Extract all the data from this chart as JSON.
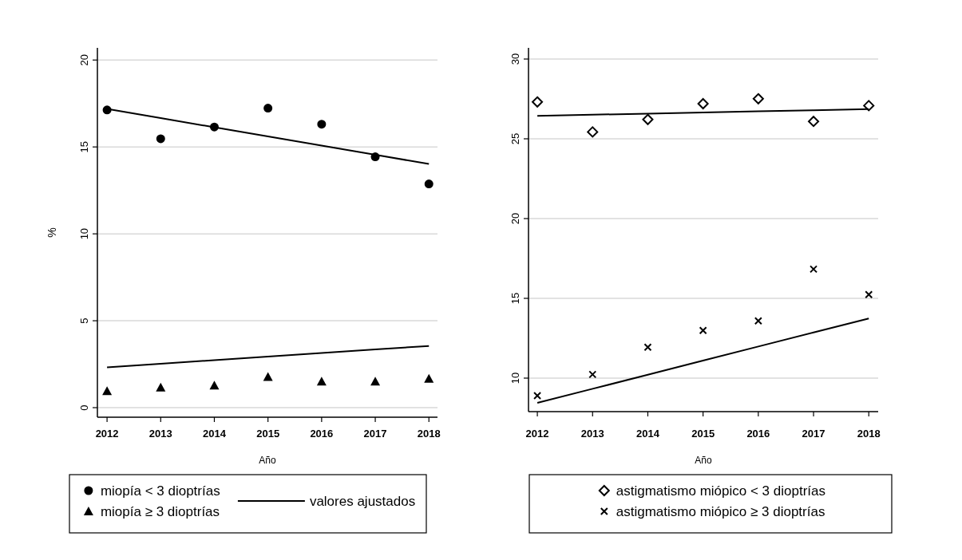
{
  "chart_data": [
    {
      "type": "scatter",
      "xlabel": "Año",
      "ylabel": "%",
      "x": [
        2012,
        2013,
        2014,
        2015,
        2016,
        2017,
        2018
      ],
      "xlim": [
        2011.82,
        2018.16
      ],
      "ylim": [
        -0.55,
        20.7
      ],
      "xticks": [
        2012,
        2013,
        2014,
        2015,
        2016,
        2017,
        2018
      ],
      "yticks": [
        0,
        5,
        10,
        15,
        20
      ],
      "grid": "y",
      "legend": "bottom",
      "series": [
        {
          "name": "miopía < 3 dioptrías",
          "color": "#000000",
          "marker": "circle",
          "values": [
            17.13,
            15.47,
            16.15,
            17.23,
            16.31,
            14.43,
            12.87
          ]
        },
        {
          "name": "miopía ≥ 3 dioptrías",
          "color": "#000000",
          "marker": "triangle",
          "values": [
            0.95,
            1.16,
            1.28,
            1.77,
            1.5,
            1.5,
            1.67
          ]
        },
        {
          "name": "valores ajustados",
          "type": "line",
          "color": "#000000",
          "marker": "none",
          "values": [
            17.19,
            16.66,
            16.13,
            15.61,
            15.08,
            14.55,
            14.02
          ]
        },
        {
          "type": "line",
          "color": "#000000",
          "marker": "none",
          "values": [
            2.32,
            2.53,
            2.73,
            2.94,
            3.14,
            3.35,
            3.55
          ]
        }
      ]
    },
    {
      "type": "scatter",
      "xlabel": "Año",
      "x": [
        2012,
        2013,
        2014,
        2015,
        2016,
        2017,
        2018
      ],
      "xlim": [
        2011.84,
        2018.17
      ],
      "ylim": [
        7.9,
        30.7
      ],
      "xticks": [
        2012,
        2013,
        2014,
        2015,
        2016,
        2017,
        2018
      ],
      "yticks": [
        10,
        15,
        20,
        25,
        30
      ],
      "grid": "y",
      "legend": "bottom",
      "series": [
        {
          "name": "astigmatismo miópico < 3 dioptrías",
          "color": "#000000",
          "marker": "diamond",
          "values": [
            27.31,
            25.43,
            26.21,
            27.2,
            27.51,
            26.09,
            27.08
          ]
        },
        {
          "name": "astigmatismo miópico ≥ 3 dioptrías",
          "color": "#000000",
          "marker": "cross",
          "values": [
            8.9,
            10.23,
            11.94,
            12.99,
            13.59,
            16.83,
            15.24
          ]
        },
        {
          "type": "line",
          "color": "#000000",
          "marker": "none",
          "values": [
            26.44,
            26.51,
            26.58,
            26.65,
            26.72,
            26.79,
            26.86
          ]
        },
        {
          "type": "line",
          "color": "#000000",
          "marker": "none",
          "values": [
            8.45,
            9.33,
            10.21,
            11.1,
            11.98,
            12.86,
            13.74
          ]
        }
      ]
    }
  ]
}
